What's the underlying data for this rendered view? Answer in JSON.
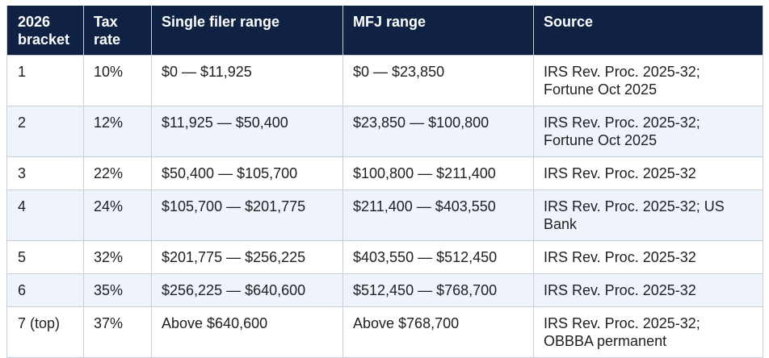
{
  "table": {
    "headers": [
      "2026 bracket",
      "Tax rate",
      "Single filer range",
      "MFJ range",
      "Source"
    ],
    "rows": [
      [
        "1",
        "10%",
        "$0 — $11,925",
        "$0 — $23,850",
        "IRS Rev. Proc. 2025-32; Fortune Oct 2025"
      ],
      [
        "2",
        "12%",
        "$11,925 — $50,400",
        "$23,850 — $100,800",
        "IRS Rev. Proc. 2025-32; Fortune Oct 2025"
      ],
      [
        "3",
        "22%",
        "$50,400 — $105,700",
        "$100,800 — $211,400",
        "IRS Rev. Proc. 2025-32"
      ],
      [
        "4",
        "24%",
        "$105,700 — $201,775",
        "$211,400 — $403,550",
        "IRS Rev. Proc. 2025-32; US Bank"
      ],
      [
        "5",
        "32%",
        "$201,775 — $256,225",
        "$403,550 — $512,450",
        "IRS Rev. Proc. 2025-32"
      ],
      [
        "6",
        "35%",
        "$256,225 — $640,600",
        "$512,450 — $768,700",
        "IRS Rev. Proc. 2025-32"
      ],
      [
        "7 (top)",
        "37%",
        "Above $640,600",
        "Above $768,700",
        "IRS Rev. Proc. 2025-32; OBBBA permanent"
      ]
    ]
  },
  "colors": {
    "header_background": "#102244",
    "header_text": "#ffffff",
    "alt_row_background": "#eef3fc",
    "border": "#c9cfd9"
  }
}
